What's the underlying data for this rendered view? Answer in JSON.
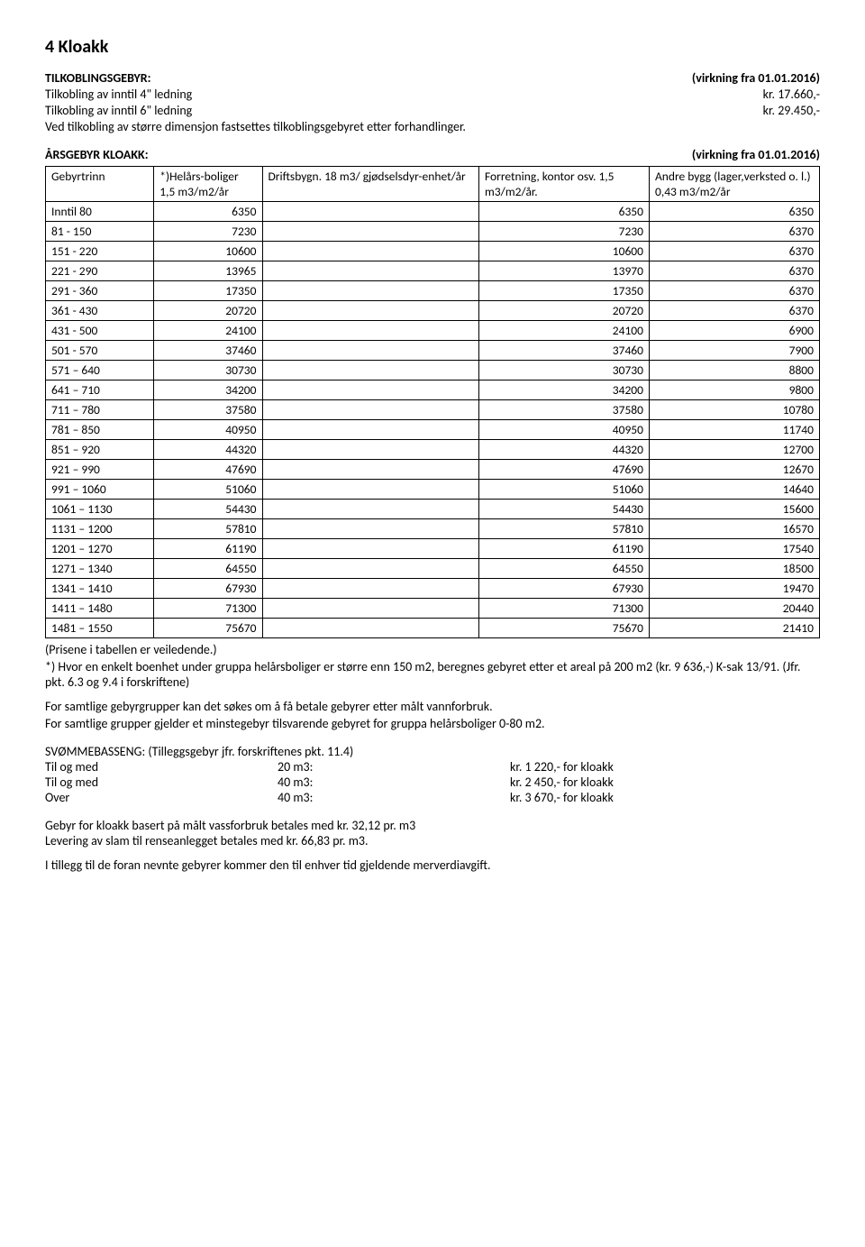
{
  "title": "4 Kloakk",
  "tilkobling": {
    "heading": "TILKOBLINGSGEBYR:",
    "heading_right": "(virkning fra 01.01.2016)",
    "line1_label": "Tilkobling av inntil 4\" ledning",
    "line1_price": "kr. 17.660,-",
    "line2_label": "Tilkobling av inntil 6\" ledning",
    "line2_price": "kr. 29.450,-",
    "line3": "Ved tilkobling av større dimensjon fastsettes tilkoblingsgebyret etter forhandlinger."
  },
  "aarsgebyr": {
    "heading": "ÅRSGEBYR KLOAKK:",
    "heading_right": "(virkning fra 01.01.2016)",
    "header": {
      "c1": "Gebyrtrinn",
      "c2": "*)Helårs-boliger 1,5 m3/m2/år",
      "c3": "Driftsbygn. 18 m3/ gjødselsdyr-enhet/år",
      "c4": "Forretning, kontor osv. 1,5 m3/m2/år.",
      "c5": "Andre bygg (lager,verksted o. l.) 0,43 m3/m2/år"
    },
    "rows": [
      {
        "r": "Inntil 80",
        "a": "6350",
        "b": "",
        "c": "6350",
        "d": "6350"
      },
      {
        "r": " 81 - 150",
        "a": "7230",
        "b": "",
        "c": "7230",
        "d": "6370"
      },
      {
        "r": "151 - 220",
        "a": "10600",
        "b": "",
        "c": "10600",
        "d": "6370"
      },
      {
        "r": "221 - 290",
        "a": "13965",
        "b": "",
        "c": "13970",
        "d": "6370"
      },
      {
        "r": "291 - 360",
        "a": "17350",
        "b": "",
        "c": "17350",
        "d": "6370"
      },
      {
        "r": "361 - 430",
        "a": "20720",
        "b": "",
        "c": "20720",
        "d": "6370"
      },
      {
        "r": "431 - 500",
        "a": "24100",
        "b": "",
        "c": "24100",
        "d": "6900"
      },
      {
        "r": "501 - 570",
        "a": "37460",
        "b": "",
        "c": "37460",
        "d": "7900"
      },
      {
        "r": "571 – 640",
        "a": "30730",
        "b": "",
        "c": "30730",
        "d": "8800"
      },
      {
        "r": "641 – 710",
        "a": "34200",
        "b": "",
        "c": "34200",
        "d": "9800"
      },
      {
        "r": "711 – 780",
        "a": "37580",
        "b": "",
        "c": "37580",
        "d": "10780"
      },
      {
        "r": "781 – 850",
        "a": "40950",
        "b": "",
        "c": "40950",
        "d": "11740"
      },
      {
        "r": "851 – 920",
        "a": "44320",
        "b": "",
        "c": "44320",
        "d": "12700"
      },
      {
        "r": "921 – 990",
        "a": "47690",
        "b": "",
        "c": "47690",
        "d": "12670"
      },
      {
        "r": "991 – 1060",
        "a": "51060",
        "b": "",
        "c": "51060",
        "d": "14640"
      },
      {
        "r": "1061 – 1130",
        "a": "54430",
        "b": "",
        "c": "54430",
        "d": "15600"
      },
      {
        "r": "1131 – 1200",
        "a": "57810",
        "b": "",
        "c": "57810",
        "d": "16570"
      },
      {
        "r": "1201 – 1270",
        "a": "61190",
        "b": "",
        "c": "61190",
        "d": "17540"
      },
      {
        "r": "1271 – 1340",
        "a": "64550",
        "b": "",
        "c": "64550",
        "d": "18500"
      },
      {
        "r": "1341 – 1410",
        "a": "67930",
        "b": "",
        "c": "67930",
        "d": "19470"
      },
      {
        "r": "1411 – 1480",
        "a": "71300",
        "b": "",
        "c": "71300",
        "d": "20440"
      },
      {
        "r": "1481 – 1550",
        "a": "75670",
        "b": "",
        "c": "75670",
        "d": "21410"
      }
    ]
  },
  "under_table": {
    "note1": "(Prisene i tabellen er veiledende.)",
    "note2": "*) Hvor en enkelt boenhet under gruppa helårsboliger er større enn 150 m2, beregnes gebyret etter et areal på 200 m2 (kr. 9 636,-) K-sak 13/91. (Jfr. pkt. 6.3 og 9.4 i forskriftene)",
    "note3": "For samtlige gebyrgrupper kan det søkes om å få betale gebyrer etter målt vannforbruk.",
    "note4": "For samtlige grupper gjelder et minstegebyr tilsvarende gebyret for gruppa helårsboliger 0-80 m2."
  },
  "svomme": {
    "heading": "SVØMMEBASSENG: (Tilleggsgebyr jfr. forskriftenes pkt. 11.4)",
    "rows": [
      {
        "a": "Til og med",
        "b": "20 m3:",
        "c": "kr. 1 220,- for kloakk"
      },
      {
        "a": "Til og med",
        "b": "40 m3:",
        "c": "kr. 2 450,- for kloakk"
      },
      {
        "a": "Over",
        "b": "40 m3:",
        "c": "kr. 3 670,- for kloakk"
      }
    ]
  },
  "bottom": {
    "line1": "Gebyr for kloakk basert på målt vassforbruk betales med kr. 32,12 pr. m3",
    "line2": "Levering av slam til renseanlegget betales med kr. 66,83 pr. m3.",
    "line3": "I tillegg til de foran nevnte gebyrer kommer den til enhver tid gjeldende merverdiavgift."
  }
}
